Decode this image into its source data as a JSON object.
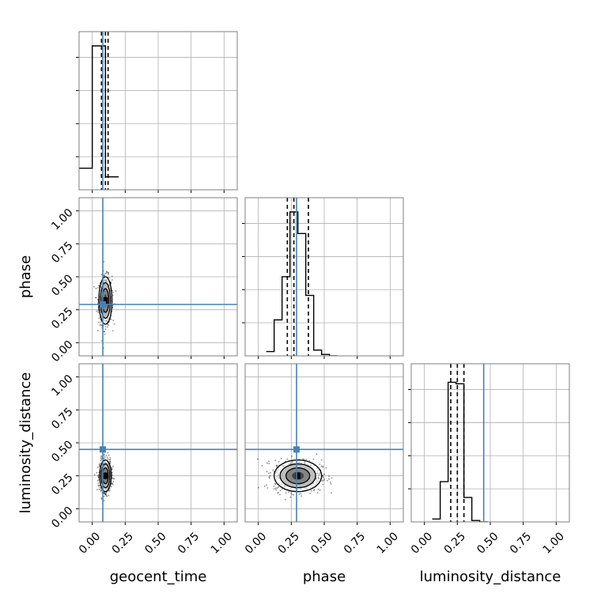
{
  "chart_data": {
    "type": "corner",
    "parameters": [
      "geocent_time",
      "phase",
      "luminosity_distance"
    ],
    "range": [
      -0.1,
      1.1
    ],
    "ticks": [
      "0.00",
      "0.25",
      "0.50",
      "0.75",
      "1.00"
    ],
    "tick_values": [
      0,
      0.25,
      0.5,
      0.75,
      1.0
    ],
    "truths": {
      "geocent_time": 0.08,
      "phase": 0.29,
      "luminosity_distance": 0.45
    },
    "quantiles": {
      "geocent_time": [
        0.07,
        0.1,
        0.12
      ],
      "phase": [
        0.22,
        0.27,
        0.38
      ],
      "luminosity_distance": [
        0.2,
        0.25,
        0.3
      ]
    },
    "histograms": {
      "geocent_time": {
        "edges": [
          -0.1,
          0.0,
          0.1,
          0.2
        ],
        "counts": [
          0.15,
          1.0,
          0.09
        ]
      },
      "phase": {
        "edges": [
          0.06,
          0.12,
          0.18,
          0.24,
          0.3,
          0.36,
          0.42,
          0.48,
          0.54,
          0.6
        ],
        "counts": [
          0.03,
          0.25,
          0.55,
          1.0,
          0.85,
          0.42,
          0.04,
          0.01,
          0.0
        ]
      },
      "luminosity_distance": {
        "edges": [
          0.06,
          0.12,
          0.18,
          0.24,
          0.3,
          0.36,
          0.42,
          0.48
        ],
        "counts": [
          0.02,
          0.28,
          0.97,
          0.96,
          0.17,
          0.01,
          0.0
        ]
      }
    },
    "posterior_2d": {
      "geocent_time_vs_phase": {
        "center": [
          0.1,
          0.32
        ],
        "sigma": [
          0.025,
          0.09
        ]
      },
      "geocent_time_vs_luminosity_distance": {
        "center": [
          0.1,
          0.25
        ],
        "sigma": [
          0.022,
          0.06
        ]
      },
      "phase_vs_luminosity_distance": {
        "center": [
          0.3,
          0.25
        ],
        "sigma": [
          0.09,
          0.06
        ]
      }
    },
    "grid": true
  },
  "colors": {
    "truth": "#4682b4",
    "hist": "#000000",
    "frame": "#7f7f7f",
    "grid": "#b0b0b0"
  }
}
